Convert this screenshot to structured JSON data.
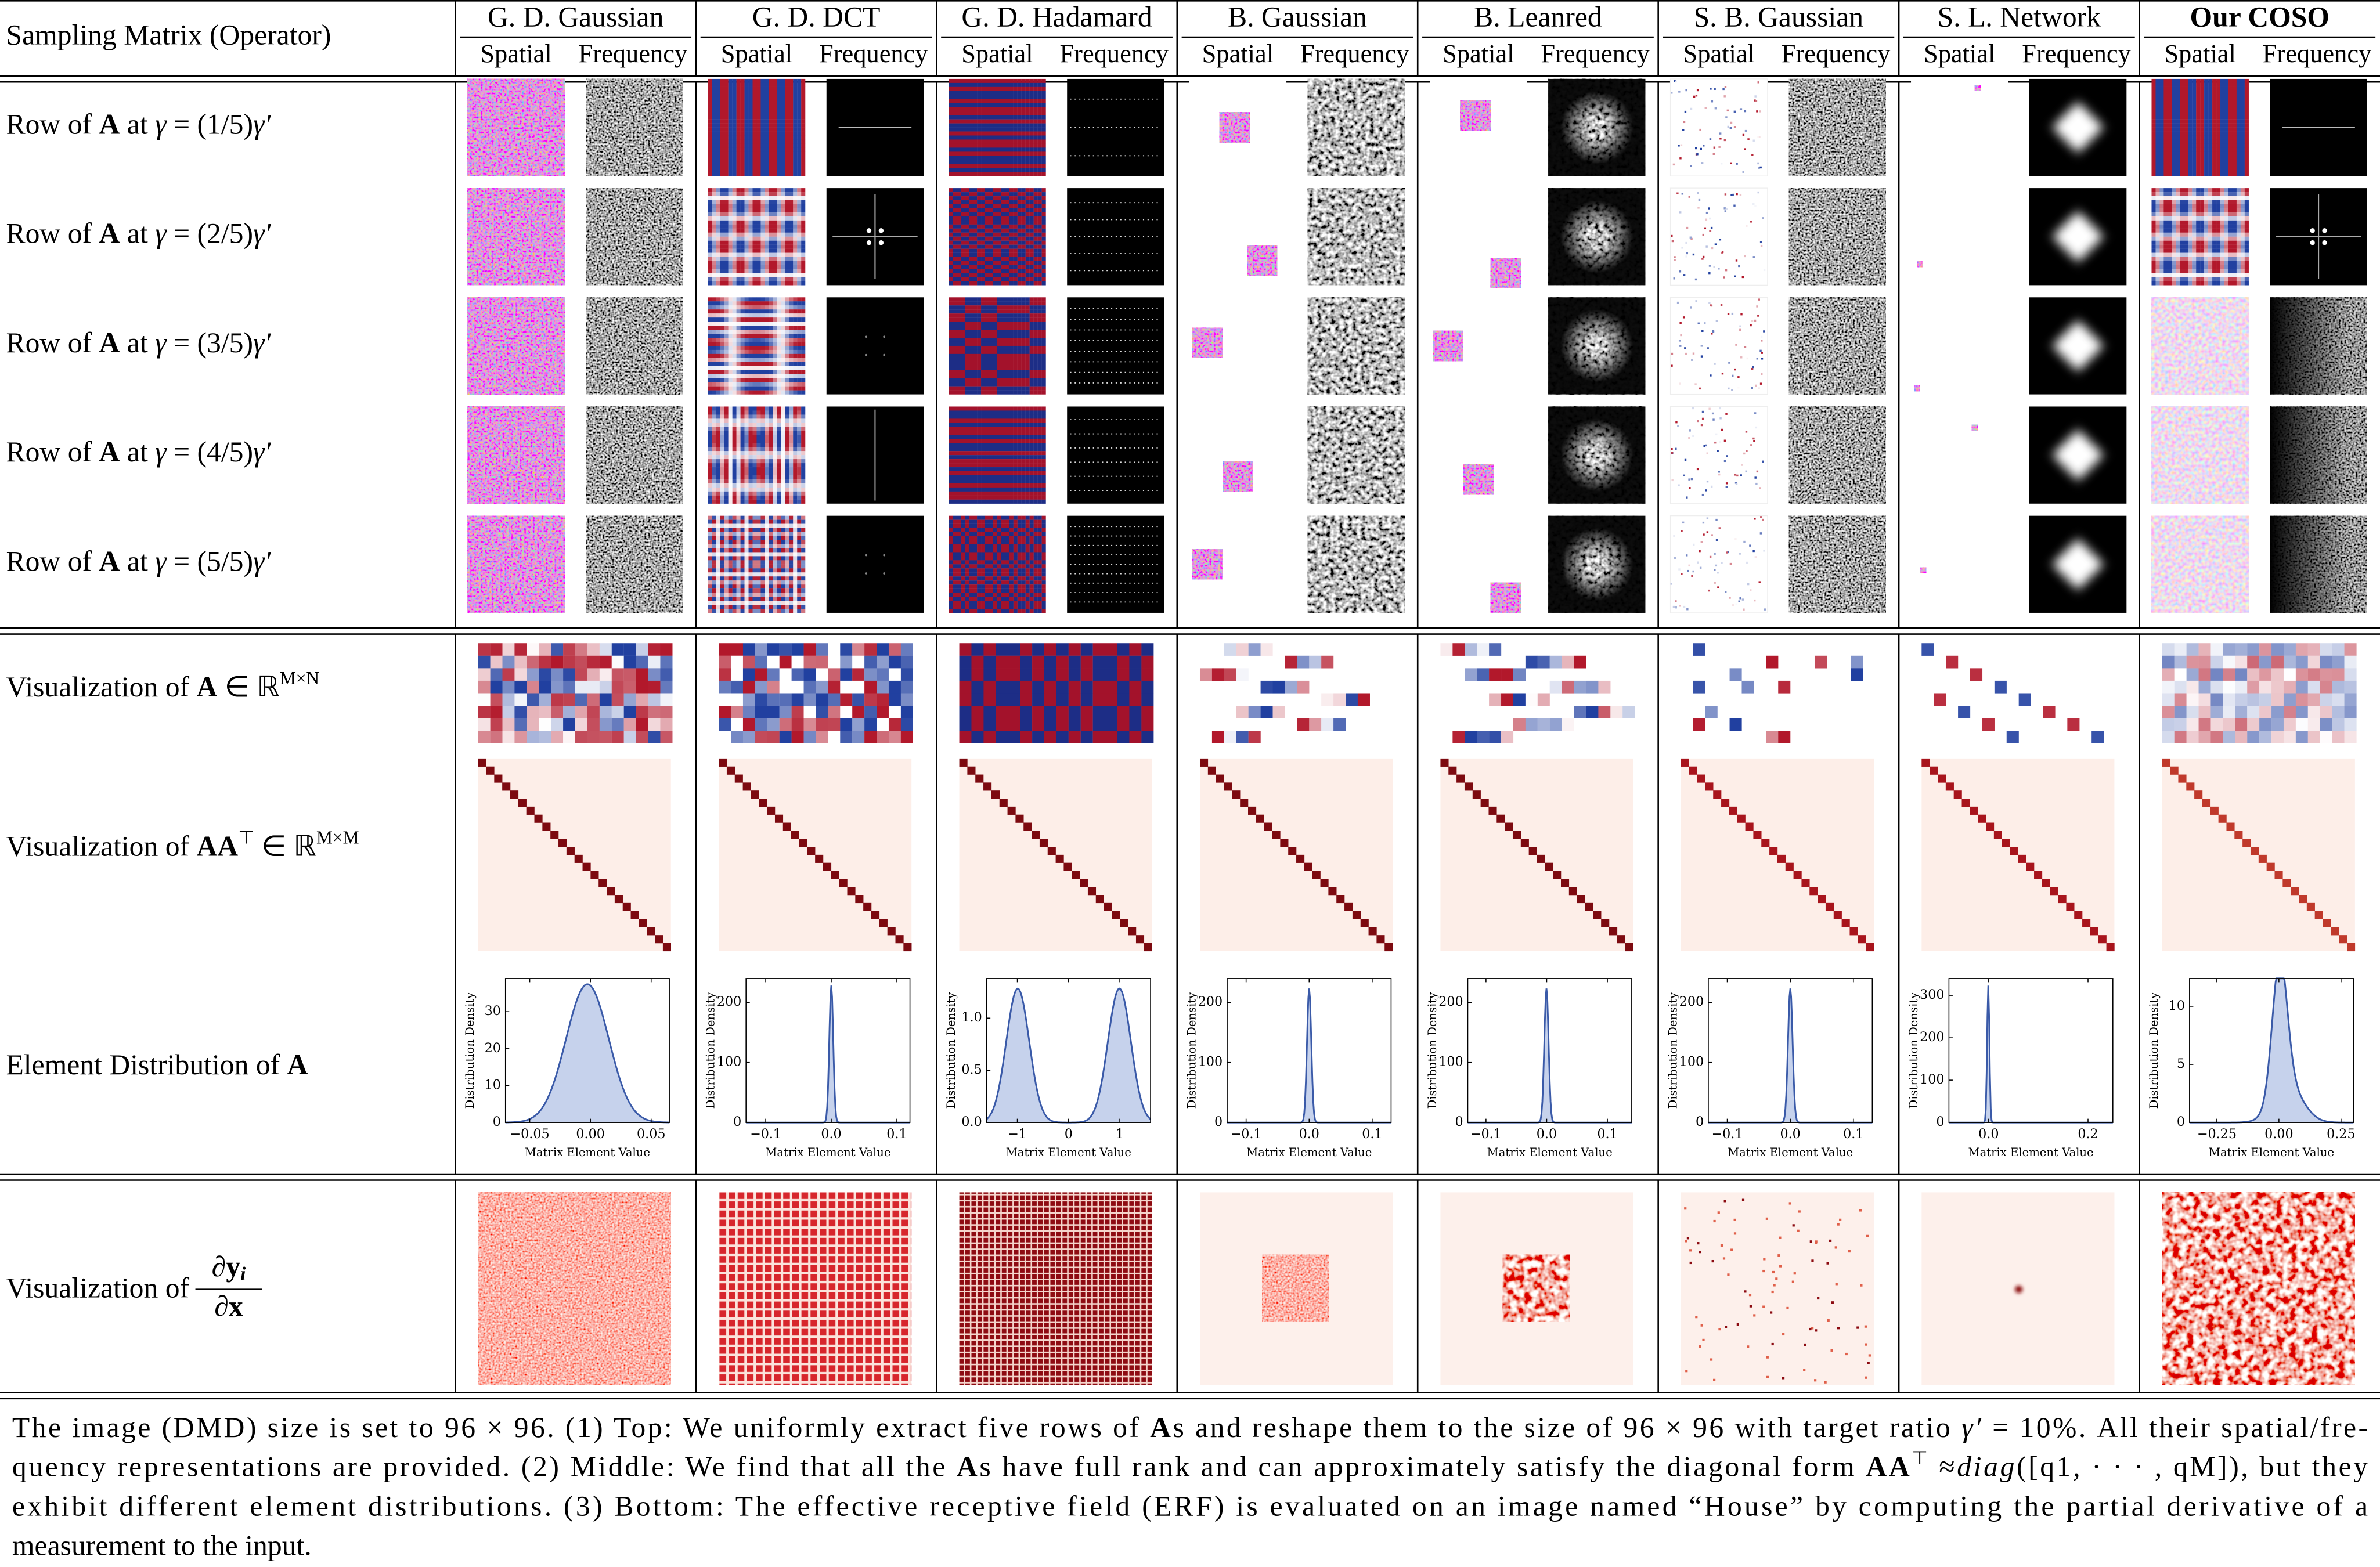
{
  "header": {
    "corner": "Sampling Matrix (Operator)",
    "columns": [
      {
        "name": "G. D. Gaussian",
        "sub": [
          "Spatial",
          "Frequency"
        ]
      },
      {
        "name": "G. D. DCT",
        "sub": [
          "Spatial",
          "Frequency"
        ]
      },
      {
        "name": "G. D. Hadamard",
        "sub": [
          "Spatial",
          "Frequency"
        ]
      },
      {
        "name": "B. Gaussian",
        "sub": [
          "Spatial",
          "Frequency"
        ]
      },
      {
        "name": "B. Leanred",
        "sub": [
          "Spatial",
          "Frequency"
        ]
      },
      {
        "name": "S. B. Gaussian",
        "sub": [
          "Spatial",
          "Frequency"
        ]
      },
      {
        "name": "S. L. Network",
        "sub": [
          "Spatial",
          "Frequency"
        ]
      },
      {
        "name": "Our COSO",
        "style": "bold",
        "sub": [
          "Spatial",
          "Frequency"
        ]
      }
    ]
  },
  "rows": {
    "top": [
      [
        {
          "text": "Row of "
        },
        {
          "text": "A",
          "style": "bold"
        },
        {
          "text": " at "
        },
        {
          "text": "γ",
          "style": "italic"
        },
        {
          "text": " = (1/5)"
        },
        {
          "text": "γ′",
          "style": "italic"
        }
      ],
      [
        {
          "text": "Row of "
        },
        {
          "text": "A",
          "style": "bold"
        },
        {
          "text": " at "
        },
        {
          "text": "γ",
          "style": "italic"
        },
        {
          "text": " = (2/5)"
        },
        {
          "text": "γ′",
          "style": "italic"
        }
      ],
      [
        {
          "text": "Row of "
        },
        {
          "text": "A",
          "style": "bold"
        },
        {
          "text": " at "
        },
        {
          "text": "γ",
          "style": "italic"
        },
        {
          "text": " = (3/5)"
        },
        {
          "text": "γ′",
          "style": "italic"
        }
      ],
      [
        {
          "text": "Row of "
        },
        {
          "text": "A",
          "style": "bold"
        },
        {
          "text": " at "
        },
        {
          "text": "γ",
          "style": "italic"
        },
        {
          "text": " = (4/5)"
        },
        {
          "text": "γ′",
          "style": "italic"
        }
      ],
      [
        {
          "text": "Row of "
        },
        {
          "text": "A",
          "style": "bold"
        },
        {
          "text": " at "
        },
        {
          "text": "γ",
          "style": "italic"
        },
        {
          "text": " = (5/5)"
        },
        {
          "text": "γ′",
          "style": "italic"
        }
      ]
    ],
    "matrix": [
      {
        "text": "Visualization of "
      },
      {
        "text": "A",
        "style": "bold"
      },
      {
        "text": " ∈ ℝ"
      },
      {
        "text": "M×N",
        "style": "sup"
      }
    ],
    "gram": [
      {
        "text": "Visualization of "
      },
      {
        "text": "AA",
        "style": "bold"
      },
      {
        "text": "⊤",
        "style": "sup"
      },
      {
        "text": " ∈ ℝ"
      },
      {
        "text": "M×M",
        "style": "sup"
      }
    ],
    "distribution": [
      {
        "text": "Element Distribution of "
      },
      {
        "text": "A",
        "style": "bold"
      }
    ],
    "erf": {
      "text": "Visualization of ",
      "fraction": {
        "numerator": "∂y",
        "index": "i",
        "denominator": "∂x"
      }
    }
  },
  "plots": [
    {
      "ylabel": "Distribution Density",
      "xlabel": "Matrix Element Value",
      "xlim": [
        -0.07,
        0.065
      ],
      "ylim": [
        0,
        39
      ],
      "xticks": [
        {
          "value": -0.05,
          "label": "−0.05"
        },
        {
          "value": 0,
          "label": "0.00"
        },
        0.05
      ],
      "yticks": [
        0,
        10,
        20,
        30
      ]
    },
    {
      "ylabel": "Distribution Density",
      "xlabel": "Matrix Element Value",
      "xlim": [
        -0.13,
        0.12
      ],
      "ylim": [
        0,
        240
      ],
      "xticks": [
        {
          "value": -0.1,
          "label": "−0.1"
        },
        {
          "value": 0,
          "label": "0.0"
        },
        0.1
      ],
      "yticks": [
        0,
        100,
        200
      ]
    },
    {
      "ylabel": "Distribution Density",
      "xlabel": "Matrix Element Value",
      "xlim": [
        -1.6,
        1.6
      ],
      "ylim": [
        0,
        1.38
      ],
      "xticks": [
        {
          "value": -1,
          "label": "−1"
        },
        0,
        1
      ],
      "yticks": [
        {
          "value": 0,
          "label": "0.0"
        },
        0.5,
        {
          "value": 1,
          "label": "1.0"
        }
      ]
    },
    {
      "ylabel": "Distribution Density",
      "xlabel": "Matrix Element Value",
      "xlim": [
        -0.13,
        0.13
      ],
      "ylim": [
        0,
        240
      ],
      "xticks": [
        {
          "value": -0.1,
          "label": "−0.1"
        },
        {
          "value": 0,
          "label": "0.0"
        },
        0.1
      ],
      "yticks": [
        0,
        100,
        200
      ]
    },
    {
      "ylabel": "Distribution Density",
      "xlabel": "Matrix Element Value",
      "xlim": [
        -0.13,
        0.14
      ],
      "ylim": [
        0,
        240
      ],
      "xticks": [
        {
          "value": -0.1,
          "label": "−0.1"
        },
        {
          "value": 0,
          "label": "0.0"
        },
        0.1
      ],
      "yticks": [
        0,
        100,
        200
      ]
    },
    {
      "ylabel": "Distribution Density",
      "xlabel": "Matrix Element Value",
      "xlim": [
        -0.13,
        0.13
      ],
      "ylim": [
        0,
        240
      ],
      "xticks": [
        {
          "value": -0.1,
          "label": "−0.1"
        },
        {
          "value": 0,
          "label": "0.0"
        },
        0.1
      ],
      "yticks": [
        0,
        100,
        200
      ]
    },
    {
      "ylabel": "Distribution Density",
      "xlabel": "Matrix Element Value",
      "xlim": [
        -0.08,
        0.25
      ],
      "ylim": [
        0,
        340
      ],
      "xticks": [
        {
          "value": 0,
          "label": "0.0"
        },
        0.2
      ],
      "yticks": [
        0,
        100,
        200,
        300
      ]
    },
    {
      "ylabel": "Distribution Density",
      "xlabel": "Matrix Element Value",
      "xlim": [
        -0.36,
        0.3
      ],
      "ylim": [
        0,
        12.4
      ],
      "xticks": [
        {
          "value": -0.25,
          "label": "−0.25"
        },
        {
          "value": 0,
          "label": "0.00"
        },
        0.25
      ],
      "yticks": [
        0,
        5,
        10
      ]
    }
  ],
  "caption": [
    [
      {
        "text": "The image (DMD) size is set to 96 × 96. (1) Top: We uniformly extract five rows of "
      },
      {
        "text": "A",
        "style": "bold"
      },
      {
        "text": "s and reshape them to the size of 96 × 96 with target ratio "
      },
      {
        "text": "γ′",
        "style": "italic"
      },
      {
        "text": " = 10%. All their spatial/fre-"
      }
    ],
    [
      {
        "text": "quency representations are provided. (2) Middle: We find that all the "
      },
      {
        "text": "A",
        "style": "bold"
      },
      {
        "text": "s have full rank and can approximately satisfy the diagonal form "
      },
      {
        "text": "AA",
        "style": "bold"
      },
      {
        "text": "⊤",
        "style": "sup"
      },
      {
        "text": " ≈"
      },
      {
        "text": "diag",
        "style": "italic"
      },
      {
        "text": "([q1, · · · , qM]), but they"
      }
    ],
    [
      {
        "text": "exhibit different element distributions. (3) Bottom: The effective receptive field (ERF) is evaluated on an image named “House” by computing the partial derivative of a"
      }
    ],
    [
      {
        "text": "measurement to the input."
      }
    ]
  ]
}
